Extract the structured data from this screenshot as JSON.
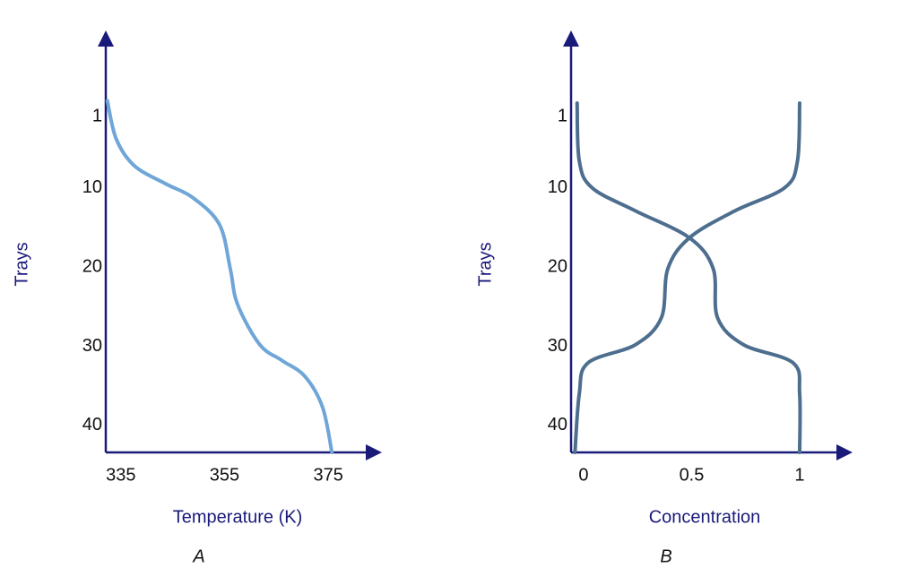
{
  "chart_data": [
    {
      "type": "line",
      "panel_label": "A",
      "x_label": "Temperature (K)",
      "y_label": "Trays",
      "xlim": [
        332.1,
        384.3
      ],
      "xticks": [
        335,
        355,
        375
      ],
      "ylim": [
        43.4,
        -9.2
      ],
      "yticks": [
        1,
        10,
        20,
        30,
        40
      ],
      "series": [
        {
          "color": "#6fa6d8",
          "x": [
            332.4,
            334.1,
            337.6,
            343.7,
            348.8,
            354.0,
            356.1,
            357.5,
            361.8,
            366.1,
            370.5,
            373.9,
            375.7
          ],
          "values": [
            -1.0,
            3.8,
            7.2,
            9.5,
            11.2,
            14.6,
            20.2,
            24.7,
            29.8,
            31.8,
            33.8,
            37.7,
            43.4
          ]
        }
      ]
    },
    {
      "type": "line",
      "panel_label": "B",
      "x_label": "Concentration",
      "y_label": "Trays",
      "xlim": [
        -0.058,
        1.22
      ],
      "xticks": [
        0,
        0.5,
        1
      ],
      "ylim": [
        43.4,
        -9.2
      ],
      "yticks": [
        1,
        10,
        20,
        30,
        40
      ],
      "series": [
        {
          "color": "#4d6e8e",
          "x": [
            -0.03,
            -0.02,
            0.04,
            0.24,
            0.49,
            0.6,
            0.62,
            0.74,
            0.97,
            1.0,
            1.0
          ],
          "values": [
            -0.7,
            6.6,
            10.0,
            12.9,
            16.3,
            20.2,
            26.4,
            29.8,
            32.1,
            36.0,
            43.4
          ]
        },
        {
          "color": "#4d6e8e",
          "x": [
            1.0,
            0.99,
            0.93,
            0.7,
            0.49,
            0.39,
            0.36,
            0.24,
            0.02,
            -0.02,
            -0.04
          ],
          "values": [
            -0.7,
            6.6,
            10.0,
            12.9,
            16.3,
            20.2,
            26.4,
            29.8,
            32.1,
            36.0,
            43.4
          ]
        }
      ]
    }
  ]
}
